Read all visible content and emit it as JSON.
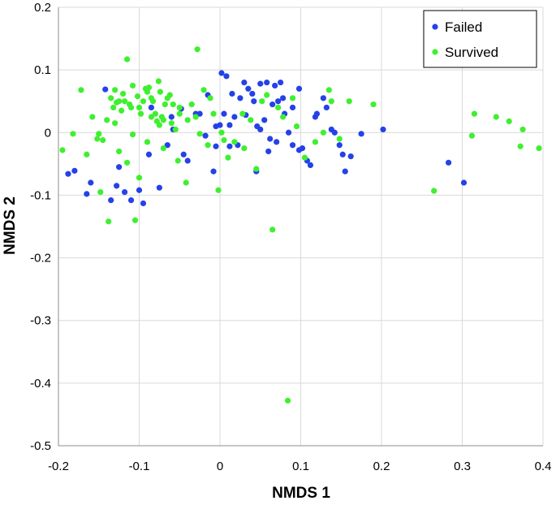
{
  "chart_data": {
    "type": "scatter",
    "title": "",
    "xlabel": "NMDS 1",
    "ylabel": "NMDS 2",
    "xlim": [
      -0.2,
      0.4
    ],
    "ylim": [
      -0.5,
      0.2
    ],
    "xticks": [
      -0.2,
      -0.1,
      0,
      0.1,
      0.2,
      0.3,
      0.4
    ],
    "yticks": [
      0.2,
      0.1,
      0,
      -0.1,
      -0.2,
      -0.3,
      -0.4,
      -0.5
    ],
    "xtick_labels": [
      "-0.2",
      "-0.1",
      "0",
      "0.1",
      "0.2",
      "0.3",
      "0.4"
    ],
    "ytick_labels": [
      "0.2",
      "0.1",
      "0",
      "-0.1",
      "-0.2",
      "-0.3",
      "-0.4",
      "-0.5"
    ],
    "grid": true,
    "legend_position": "top-right",
    "series": [
      {
        "name": "Failed",
        "color": "#2541e8",
        "points": [
          [
            -0.188,
            -0.066
          ],
          [
            -0.18,
            -0.061
          ],
          [
            -0.165,
            -0.098
          ],
          [
            -0.16,
            -0.08
          ],
          [
            -0.142,
            0.069
          ],
          [
            -0.135,
            -0.108
          ],
          [
            -0.125,
            -0.055
          ],
          [
            -0.128,
            -0.085
          ],
          [
            -0.118,
            -0.095
          ],
          [
            -0.11,
            -0.108
          ],
          [
            -0.1,
            -0.092
          ],
          [
            -0.095,
            -0.113
          ],
          [
            -0.085,
            0.04
          ],
          [
            -0.075,
            -0.088
          ],
          [
            -0.065,
            -0.02
          ],
          [
            -0.06,
            0.025
          ],
          [
            -0.058,
            0.005
          ],
          [
            -0.045,
            -0.035
          ],
          [
            -0.04,
            -0.045
          ],
          [
            -0.03,
            0.03
          ],
          [
            -0.025,
            0.03
          ],
          [
            -0.015,
            0.06
          ],
          [
            -0.008,
            -0.062
          ],
          [
            -0.005,
            -0.022
          ],
          [
            0.0,
            0.012
          ],
          [
            0.002,
            0.095
          ],
          [
            0.005,
            0.03
          ],
          [
            0.008,
            0.09
          ],
          [
            0.012,
            0.012
          ],
          [
            0.015,
            0.062
          ],
          [
            0.018,
            0.025
          ],
          [
            0.022,
            -0.02
          ],
          [
            0.03,
            0.08
          ],
          [
            0.035,
            0.07
          ],
          [
            0.042,
            0.05
          ],
          [
            0.045,
            -0.062
          ],
          [
            0.05,
            0.078
          ],
          [
            0.055,
            0.02
          ],
          [
            0.058,
            0.08
          ],
          [
            0.062,
            -0.01
          ],
          [
            0.065,
            0.045
          ],
          [
            0.068,
            0.075
          ],
          [
            0.07,
            -0.015
          ],
          [
            0.075,
            0.08
          ],
          [
            0.078,
            0.055
          ],
          [
            0.08,
            0.03
          ],
          [
            0.085,
            0.0
          ],
          [
            0.09,
            -0.02
          ],
          [
            0.098,
            0.07
          ],
          [
            0.102,
            -0.025
          ],
          [
            0.108,
            -0.045
          ],
          [
            0.112,
            -0.052
          ],
          [
            0.118,
            0.025
          ],
          [
            0.12,
            0.03
          ],
          [
            0.128,
            0.055
          ],
          [
            0.132,
            0.04
          ],
          [
            0.138,
            0.005
          ],
          [
            0.142,
            0.0
          ],
          [
            0.148,
            -0.02
          ],
          [
            0.152,
            -0.035
          ],
          [
            0.155,
            -0.062
          ],
          [
            0.162,
            -0.038
          ],
          [
            0.175,
            -0.002
          ],
          [
            0.202,
            0.005
          ],
          [
            0.283,
            -0.048
          ],
          [
            0.302,
            -0.08
          ],
          [
            0.04,
            0.062
          ],
          [
            0.025,
            0.055
          ],
          [
            -0.018,
            -0.005
          ],
          [
            0.06,
            -0.03
          ],
          [
            0.05,
            0.005
          ],
          [
            0.012,
            -0.022
          ],
          [
            -0.005,
            0.01
          ],
          [
            0.072,
            0.05
          ],
          [
            0.09,
            0.04
          ],
          [
            -0.088,
            -0.035
          ],
          [
            -0.048,
            0.038
          ],
          [
            0.032,
            0.028
          ],
          [
            0.046,
            0.01
          ],
          [
            0.098,
            -0.028
          ]
        ]
      },
      {
        "name": "Survived",
        "color": "#3ef02f",
        "points": [
          [
            -0.195,
            -0.028
          ],
          [
            -0.182,
            -0.002
          ],
          [
            -0.172,
            0.068
          ],
          [
            -0.165,
            -0.035
          ],
          [
            -0.158,
            0.025
          ],
          [
            -0.152,
            -0.01
          ],
          [
            -0.15,
            -0.002
          ],
          [
            -0.148,
            -0.095
          ],
          [
            -0.145,
            -0.012
          ],
          [
            -0.138,
            -0.142
          ],
          [
            -0.135,
            0.055
          ],
          [
            -0.132,
            0.04
          ],
          [
            -0.13,
            0.068
          ],
          [
            -0.128,
            0.048
          ],
          [
            -0.125,
            0.05
          ],
          [
            -0.122,
            0.035
          ],
          [
            -0.12,
            0.062
          ],
          [
            -0.118,
            0.05
          ],
          [
            -0.115,
            0.117
          ],
          [
            -0.112,
            0.045
          ],
          [
            -0.11,
            0.04
          ],
          [
            -0.108,
            -0.003
          ],
          [
            -0.105,
            -0.14
          ],
          [
            -0.102,
            0.058
          ],
          [
            -0.1,
            0.04
          ],
          [
            -0.098,
            0.03
          ],
          [
            -0.095,
            0.05
          ],
          [
            -0.092,
            0.07
          ],
          [
            -0.09,
            0.065
          ],
          [
            -0.088,
            0.072
          ],
          [
            -0.085,
            0.055
          ],
          [
            -0.083,
            0.05
          ],
          [
            -0.08,
            0.03
          ],
          [
            -0.078,
            0.018
          ],
          [
            -0.076,
            0.082
          ],
          [
            -0.074,
            0.065
          ],
          [
            -0.072,
            0.025
          ],
          [
            -0.07,
            0.02
          ],
          [
            -0.068,
            0.045
          ],
          [
            -0.065,
            0.055
          ],
          [
            -0.062,
            0.06
          ],
          [
            -0.058,
            0.045
          ],
          [
            -0.055,
            0.005
          ],
          [
            -0.052,
            -0.045
          ],
          [
            -0.05,
            0.03
          ],
          [
            -0.042,
            -0.08
          ],
          [
            -0.035,
            0.045
          ],
          [
            -0.03,
            0.025
          ],
          [
            -0.028,
            0.133
          ],
          [
            -0.025,
            -0.002
          ],
          [
            -0.02,
            0.068
          ],
          [
            -0.015,
            -0.02
          ],
          [
            -0.012,
            0.055
          ],
          [
            -0.008,
            0.03
          ],
          [
            -0.002,
            -0.092
          ],
          [
            0.002,
            0.0
          ],
          [
            0.01,
            -0.04
          ],
          [
            0.018,
            -0.015
          ],
          [
            0.028,
            0.03
          ],
          [
            0.03,
            -0.025
          ],
          [
            0.038,
            0.02
          ],
          [
            0.045,
            -0.058
          ],
          [
            0.052,
            0.05
          ],
          [
            0.058,
            0.06
          ],
          [
            0.065,
            -0.155
          ],
          [
            0.072,
            0.04
          ],
          [
            0.078,
            0.025
          ],
          [
            0.084,
            -0.428
          ],
          [
            0.09,
            0.055
          ],
          [
            0.095,
            0.01
          ],
          [
            0.105,
            -0.04
          ],
          [
            0.118,
            -0.015
          ],
          [
            0.128,
            0.0
          ],
          [
            0.135,
            0.068
          ],
          [
            0.138,
            0.05
          ],
          [
            0.148,
            -0.01
          ],
          [
            0.16,
            0.05
          ],
          [
            0.19,
            0.045
          ],
          [
            0.265,
            -0.093
          ],
          [
            0.312,
            -0.005
          ],
          [
            0.315,
            0.03
          ],
          [
            0.342,
            0.025
          ],
          [
            0.358,
            0.018
          ],
          [
            0.372,
            -0.022
          ],
          [
            0.375,
            0.005
          ],
          [
            0.395,
            -0.025
          ],
          [
            -0.125,
            -0.03
          ],
          [
            -0.14,
            0.02
          ],
          [
            -0.115,
            -0.048
          ],
          [
            -0.09,
            -0.015
          ],
          [
            -0.07,
            -0.025
          ],
          [
            -0.06,
            0.015
          ],
          [
            -0.1,
            -0.072
          ],
          [
            -0.108,
            0.075
          ],
          [
            -0.085,
            0.025
          ],
          [
            -0.04,
            0.02
          ],
          [
            0.005,
            -0.012
          ],
          [
            -0.13,
            0.015
          ],
          [
            -0.075,
            0.012
          ],
          [
            -0.05,
            0.04
          ]
        ]
      }
    ]
  }
}
